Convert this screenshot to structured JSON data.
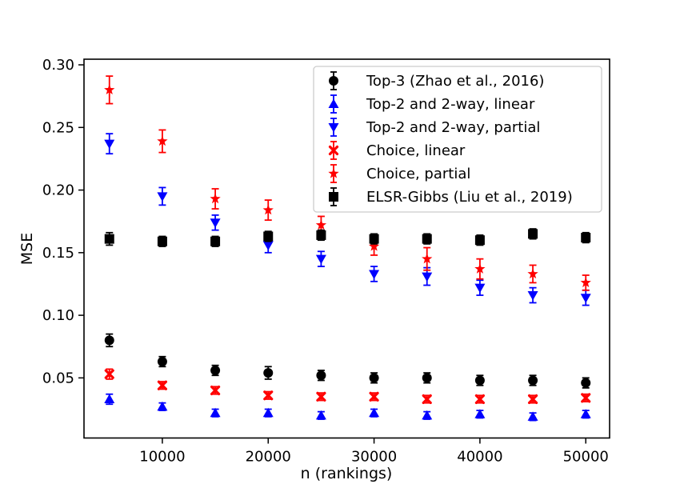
{
  "figure": {
    "background": "#ffffff",
    "frame_color": "#000000"
  },
  "chart_data": {
    "type": "scatter",
    "subtype": "errorbar",
    "title": "",
    "xlabel": "n (rankings)",
    "ylabel": "MSE",
    "grid": false,
    "legend_position": "upper right inside",
    "xlim": [
      2600,
      52250
    ],
    "ylim": [
      0.002,
      0.3045
    ],
    "xticks": [
      10000,
      20000,
      30000,
      40000,
      50000
    ],
    "yticks": [
      0.05,
      0.1,
      0.15,
      0.2,
      0.25,
      0.3
    ],
    "x": [
      5000,
      10000,
      15000,
      20000,
      25000,
      30000,
      35000,
      40000,
      45000,
      50000
    ],
    "series": [
      {
        "name": "Top-3 (Zhao et al., 2016)",
        "color": "#000000",
        "marker": "circle",
        "values": [
          0.08,
          0.063,
          0.056,
          0.054,
          0.052,
          0.05,
          0.05,
          0.048,
          0.048,
          0.046
        ],
        "errors": [
          0.005,
          0.004,
          0.004,
          0.005,
          0.004,
          0.004,
          0.004,
          0.004,
          0.004,
          0.004
        ]
      },
      {
        "name": "Top-2 and 2-way, linear",
        "color": "#0000ff",
        "marker": "triangle-up",
        "values": [
          0.033,
          0.027,
          0.022,
          0.022,
          0.02,
          0.022,
          0.02,
          0.021,
          0.019,
          0.021
        ],
        "errors": [
          0.004,
          0.003,
          0.003,
          0.003,
          0.003,
          0.003,
          0.003,
          0.003,
          0.003,
          0.003
        ]
      },
      {
        "name": "Top-2 and 2-way, partial",
        "color": "#0000ff",
        "marker": "triangle-down",
        "values": [
          0.237,
          0.195,
          0.174,
          0.156,
          0.145,
          0.133,
          0.131,
          0.122,
          0.116,
          0.114
        ],
        "errors": [
          0.008,
          0.007,
          0.006,
          0.006,
          0.006,
          0.006,
          0.007,
          0.006,
          0.006,
          0.006
        ]
      },
      {
        "name": "Choice, linear",
        "color": "#ff0000",
        "marker": "x",
        "values": [
          0.053,
          0.044,
          0.04,
          0.036,
          0.035,
          0.035,
          0.033,
          0.033,
          0.033,
          0.034
        ],
        "errors": [
          0.004,
          0.003,
          0.003,
          0.003,
          0.003,
          0.003,
          0.003,
          0.003,
          0.003,
          0.003
        ]
      },
      {
        "name": "Choice, partial",
        "color": "#ff0000",
        "marker": "star",
        "values": [
          0.28,
          0.239,
          0.193,
          0.184,
          0.172,
          0.155,
          0.145,
          0.137,
          0.133,
          0.126
        ],
        "errors": [
          0.011,
          0.009,
          0.008,
          0.008,
          0.007,
          0.007,
          0.009,
          0.008,
          0.007,
          0.006
        ]
      },
      {
        "name": "ELSR-Gibbs (Liu et al., 2019)",
        "color": "#000000",
        "marker": "square",
        "values": [
          0.161,
          0.159,
          0.159,
          0.163,
          0.164,
          0.161,
          0.161,
          0.16,
          0.165,
          0.162
        ],
        "errors": [
          0.005,
          0.004,
          0.004,
          0.004,
          0.004,
          0.004,
          0.004,
          0.004,
          0.004,
          0.004
        ]
      }
    ]
  }
}
